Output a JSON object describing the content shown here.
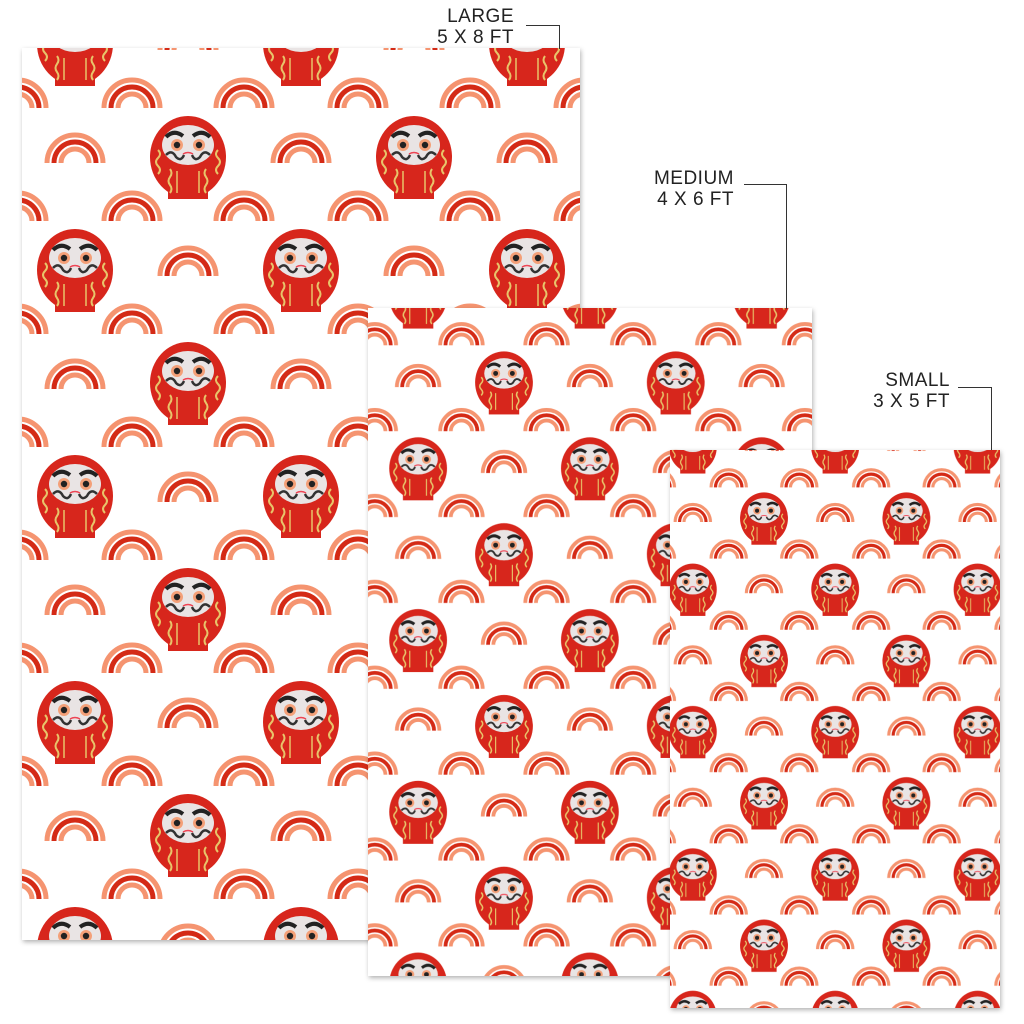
{
  "sizes": [
    {
      "name": "LARGE",
      "dims": "5 X 8  FT"
    },
    {
      "name": "MEDIUM",
      "dims": "4 X 6  FT"
    },
    {
      "name": "SMALL",
      "dims": "3 X 5  FT"
    }
  ],
  "pattern": {
    "motifs": [
      "daruma-doll",
      "rainbow"
    ],
    "colors": {
      "daruma_red": "#d7261a",
      "rainbow_salmon": "#f59470",
      "rainbow_red": "#d42a16",
      "gold": "#e8c46a",
      "face": "#e9e4e4",
      "background": "#ffffff"
    }
  }
}
